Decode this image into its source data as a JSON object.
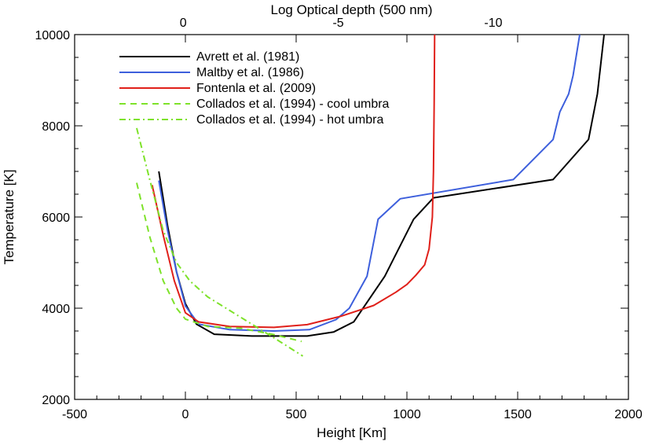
{
  "chart_data": {
    "type": "line",
    "xlabel": "Height [Km]",
    "ylabel": "Temperature [K]",
    "x2label": "Log Optical depth (500 nm)",
    "xlim": [
      -500,
      2000
    ],
    "ylim": [
      2000,
      10000
    ],
    "x_ticks": [
      -500,
      0,
      500,
      1000,
      1500,
      2000
    ],
    "y_ticks": [
      2000,
      4000,
      6000,
      8000,
      10000
    ],
    "x2_ticks": [
      {
        "label": "0",
        "height": -10
      },
      {
        "label": "-5",
        "height": 690
      },
      {
        "label": "-10",
        "height": 1390
      }
    ],
    "legend": "top-left",
    "series": [
      {
        "name": "Avrett et al. (1981)",
        "color": "#000000",
        "dash": "solid",
        "points": [
          [
            -120,
            7000
          ],
          [
            -80,
            5800
          ],
          [
            -40,
            4800
          ],
          [
            0,
            4100
          ],
          [
            50,
            3650
          ],
          [
            130,
            3430
          ],
          [
            300,
            3390
          ],
          [
            550,
            3390
          ],
          [
            670,
            3480
          ],
          [
            760,
            3700
          ],
          [
            900,
            4700
          ],
          [
            1030,
            5950
          ],
          [
            1120,
            6420
          ],
          [
            1660,
            6820
          ],
          [
            1820,
            7700
          ],
          [
            1860,
            8700
          ],
          [
            1890,
            10000
          ]
        ]
      },
      {
        "name": "Maltby et al. (1986)",
        "color": "#3d5fdc",
        "dash": "solid",
        "points": [
          [
            -120,
            6800
          ],
          [
            -80,
            5700
          ],
          [
            -40,
            4800
          ],
          [
            0,
            4050
          ],
          [
            60,
            3650
          ],
          [
            200,
            3530
          ],
          [
            400,
            3500
          ],
          [
            560,
            3530
          ],
          [
            680,
            3750
          ],
          [
            740,
            4000
          ],
          [
            820,
            4700
          ],
          [
            870,
            5950
          ],
          [
            970,
            6400
          ],
          [
            1480,
            6820
          ],
          [
            1660,
            7700
          ],
          [
            1690,
            8300
          ],
          [
            1730,
            8700
          ],
          [
            1750,
            9100
          ],
          [
            1780,
            10000
          ]
        ]
      },
      {
        "name": "Fontenla et al. (2009)",
        "color": "#e0201a",
        "dash": "solid",
        "points": [
          [
            -150,
            6700
          ],
          [
            -100,
            5600
          ],
          [
            -50,
            4600
          ],
          [
            0,
            3900
          ],
          [
            60,
            3700
          ],
          [
            200,
            3600
          ],
          [
            400,
            3580
          ],
          [
            550,
            3640
          ],
          [
            700,
            3820
          ],
          [
            850,
            4060
          ],
          [
            950,
            4350
          ],
          [
            1000,
            4520
          ],
          [
            1040,
            4720
          ],
          [
            1080,
            4950
          ],
          [
            1100,
            5300
          ],
          [
            1115,
            6000
          ],
          [
            1120,
            7000
          ],
          [
            1123,
            8500
          ],
          [
            1125,
            10000
          ]
        ]
      },
      {
        "name": "Collados et al. (1994) - cool umbra",
        "color": "#7ee22a",
        "dash": "8,6",
        "points": [
          [
            -220,
            6750
          ],
          [
            -160,
            5550
          ],
          [
            -100,
            4600
          ],
          [
            -40,
            4000
          ],
          [
            0,
            3760
          ],
          [
            100,
            3600
          ],
          [
            250,
            3560
          ],
          [
            400,
            3420
          ],
          [
            525,
            3270
          ]
        ]
      },
      {
        "name": "Collados et al. (1994) - hot umbra",
        "color": "#7ee22a",
        "dash": "8,4,2,4",
        "points": [
          [
            -220,
            7950
          ],
          [
            -160,
            6800
          ],
          [
            -100,
            5700
          ],
          [
            -40,
            5000
          ],
          [
            20,
            4600
          ],
          [
            100,
            4250
          ],
          [
            200,
            3950
          ],
          [
            300,
            3650
          ],
          [
            400,
            3350
          ],
          [
            530,
            2950
          ]
        ]
      }
    ]
  }
}
